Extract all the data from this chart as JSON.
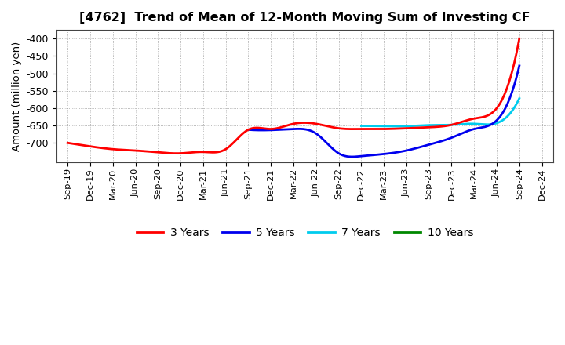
{
  "title": "[4762]  Trend of Mean of 12-Month Moving Sum of Investing CF",
  "ylabel": "Amount (million yen)",
  "ylim": [
    -755,
    -375
  ],
  "yticks": [
    -700,
    -650,
    -600,
    -550,
    -500,
    -450,
    -400
  ],
  "background_color": "#ffffff",
  "grid_color": "#999999",
  "legend_labels": [
    "3 Years",
    "5 Years",
    "7 Years",
    "10 Years"
  ],
  "legend_colors": [
    "#ff0000",
    "#0000ee",
    "#00ccee",
    "#008800"
  ],
  "x_labels": [
    "Sep-19",
    "Dec-19",
    "Mar-20",
    "Jun-20",
    "Sep-20",
    "Dec-20",
    "Mar-21",
    "Jun-21",
    "Sep-21",
    "Dec-21",
    "Mar-22",
    "Jun-22",
    "Sep-22",
    "Dec-22",
    "Mar-23",
    "Jun-23",
    "Sep-23",
    "Dec-23",
    "Mar-24",
    "Jun-24",
    "Sep-24",
    "Dec-24"
  ],
  "series_3yr_x": [
    0,
    1,
    2,
    3,
    4,
    5,
    6,
    7,
    8,
    9,
    10,
    11,
    12,
    13,
    14,
    15,
    16,
    17,
    18,
    19,
    20
  ],
  "series_3yr_y": [
    -700,
    -710,
    -718,
    -722,
    -727,
    -730,
    -726,
    -718,
    -662,
    -660,
    -645,
    -645,
    -658,
    -660,
    -660,
    -658,
    -655,
    -648,
    -630,
    -600,
    -400
  ],
  "series_5yr_x": [
    8,
    9,
    10,
    11,
    12,
    13,
    14,
    15,
    16,
    17,
    18,
    19,
    20
  ],
  "series_5yr_y": [
    -662,
    -663,
    -660,
    -673,
    -730,
    -738,
    -732,
    -722,
    -705,
    -685,
    -660,
    -635,
    -478
  ],
  "series_7yr_x": [
    13,
    14,
    15,
    16,
    17,
    18,
    19,
    20
  ],
  "series_7yr_y": [
    -651,
    -652,
    -652,
    -649,
    -648,
    -645,
    -643,
    -572
  ],
  "series_10yr_x": [],
  "series_10yr_y": []
}
